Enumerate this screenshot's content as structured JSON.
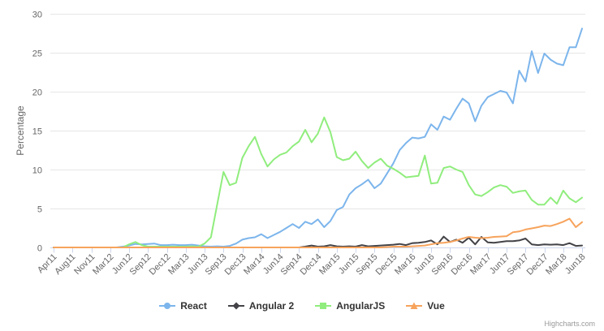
{
  "chart": {
    "credit": "Highcharts.com",
    "styles": {
      "grid_color": "#e6e6e6",
      "axis_line_color": "#ccd6eb",
      "tick_color": "#ccd6eb",
      "axis_label_color": "#666666",
      "legend_text_color": "#333333",
      "credit_color": "#999999",
      "background": "#ffffff"
    }
  },
  "chart_data": {
    "type": "line",
    "title": "",
    "xlabel": "",
    "ylabel": "Percentage",
    "ylim": [
      0,
      30
    ],
    "y_ticks": [
      0,
      5,
      10,
      15,
      20,
      25,
      30
    ],
    "grid": true,
    "legend_position": "bottom",
    "x_tick_labels": [
      "Apr11",
      "Aug11",
      "Nov11",
      "Mar12",
      "Jun12",
      "Sep12",
      "Dec12",
      "Mar13",
      "Jun13",
      "Sep13",
      "Dec13",
      "Mar14",
      "Jun14",
      "Sep14",
      "Dec14",
      "Mar15",
      "Jun15",
      "Sep15",
      "Dec15",
      "Mar16",
      "Jun16",
      "Sep16",
      "Dec16",
      "Mar17",
      "Jun17",
      "Sep17",
      "Dec17",
      "Mar18",
      "Jun18"
    ],
    "points_per_tick": 3,
    "series": [
      {
        "name": "React",
        "color": "#7cb5ec",
        "marker": "circle",
        "values": [
          0,
          0,
          0,
          0,
          0,
          0,
          0,
          0,
          0,
          0,
          0,
          0.1,
          0.25,
          0.45,
          0.4,
          0.45,
          0.5,
          0.3,
          0.3,
          0.35,
          0.3,
          0.3,
          0.35,
          0.25,
          0.15,
          0.1,
          0.15,
          0.1,
          0.2,
          0.5,
          1.0,
          1.2,
          1.3,
          1.7,
          1.2,
          1.6,
          2.0,
          2.5,
          3.0,
          2.5,
          3.3,
          3.0,
          3.6,
          2.6,
          3.4,
          4.8,
          5.2,
          6.8,
          7.6,
          8.1,
          8.7,
          7.6,
          8.2,
          9.5,
          10.8,
          12.5,
          13.4,
          14.1,
          14.0,
          14.2,
          15.8,
          15.1,
          16.8,
          16.4,
          17.8,
          19.1,
          18.5,
          16.2,
          18.2,
          19.3,
          19.7,
          20.1,
          19.9,
          18.5,
          22.7,
          21.3,
          25.2,
          22.4,
          24.9,
          24.1,
          23.6,
          23.4,
          25.7,
          25.7,
          28.1
        ]
      },
      {
        "name": "Angular 2",
        "color": "#434348",
        "marker": "diamond",
        "values": [
          0,
          0,
          0,
          0,
          0,
          0,
          0,
          0,
          0,
          0,
          0,
          0,
          0,
          0,
          0,
          0,
          0,
          0,
          0,
          0,
          0,
          0,
          0,
          0,
          0,
          0,
          0,
          0,
          0,
          0,
          0,
          0,
          0,
          0,
          0,
          0,
          0,
          0,
          0,
          0,
          0.1,
          0.25,
          0.1,
          0.15,
          0.3,
          0.15,
          0.1,
          0.15,
          0.1,
          0.3,
          0.15,
          0.2,
          0.25,
          0.3,
          0.35,
          0.45,
          0.3,
          0.55,
          0.6,
          0.7,
          0.9,
          0.4,
          1.4,
          0.7,
          1.0,
          0.6,
          1.25,
          0.4,
          1.35,
          0.65,
          0.6,
          0.7,
          0.8,
          0.8,
          0.9,
          1.15,
          0.4,
          0.3,
          0.4,
          0.35,
          0.4,
          0.3,
          0.55,
          0.2,
          0.25
        ]
      },
      {
        "name": "AngularJS",
        "color": "#90ed7d",
        "marker": "square",
        "values": [
          0,
          0,
          0,
          0,
          0,
          0,
          0,
          0,
          0,
          0,
          0,
          0,
          0.4,
          0.7,
          0.3,
          0.1,
          0.1,
          0.1,
          0.1,
          0.1,
          0.1,
          0.1,
          0.15,
          0.1,
          0.5,
          1.3,
          5.5,
          9.7,
          8.0,
          8.3,
          11.5,
          13.0,
          14.2,
          12.0,
          10.4,
          11.3,
          11.9,
          12.2,
          13.0,
          13.6,
          15.1,
          13.5,
          14.6,
          16.7,
          14.8,
          11.6,
          11.2,
          11.4,
          12.3,
          11.1,
          10.2,
          10.9,
          11.4,
          10.5,
          10.1,
          9.6,
          9.0,
          9.1,
          9.2,
          11.8,
          8.2,
          8.3,
          10.2,
          10.4,
          10.0,
          9.7,
          8.0,
          6.8,
          6.6,
          7.1,
          7.7,
          8.0,
          7.8,
          7.0,
          7.2,
          7.3,
          6.1,
          5.5,
          5.5,
          6.4,
          5.6,
          7.3,
          6.3,
          5.8,
          6.4
        ]
      },
      {
        "name": "Vue",
        "color": "#f7a35c",
        "marker": "triangle",
        "values": [
          0,
          0,
          0,
          0,
          0,
          0,
          0,
          0,
          0,
          0,
          0,
          0,
          0,
          0,
          0,
          0,
          0,
          0,
          0,
          0,
          0,
          0,
          0,
          0,
          0,
          0,
          0,
          0,
          0,
          0,
          0,
          0,
          0,
          0,
          0,
          0,
          0,
          0,
          0,
          0,
          0,
          0,
          0,
          0,
          0,
          0,
          0,
          0,
          0,
          0,
          0,
          0,
          0,
          0.05,
          0.1,
          0.1,
          0.1,
          0.15,
          0.2,
          0.25,
          0.4,
          0.55,
          0.6,
          0.7,
          0.9,
          1.15,
          1.35,
          1.25,
          1.2,
          1.25,
          1.35,
          1.4,
          1.45,
          1.95,
          2.05,
          2.3,
          2.45,
          2.6,
          2.8,
          2.75,
          3.0,
          3.3,
          3.7,
          2.6,
          3.25
        ]
      }
    ]
  }
}
